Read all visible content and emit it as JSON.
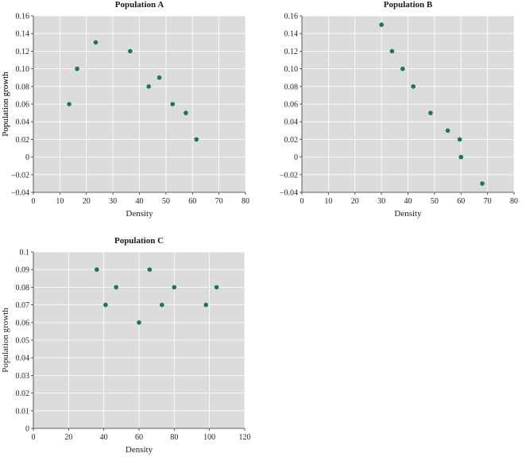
{
  "theme": {
    "plot_background": "#dcdcdc",
    "grid_color": "#ffffff",
    "point_color": "#1a7a4c",
    "axis_color": "#333333"
  },
  "chart_data": [
    {
      "type": "scatter",
      "title": "Population A",
      "xlabel": "Density",
      "ylabel": "Population growth",
      "xlim": [
        0,
        80
      ],
      "ylim": [
        -0.04,
        0.16
      ],
      "grid": true,
      "xticks": [
        0,
        10,
        20,
        30,
        40,
        50,
        60,
        70,
        80
      ],
      "yticks": [
        -0.04,
        -0.02,
        0,
        0.02,
        0.04,
        0.06,
        0.08,
        0.1,
        0.12,
        0.14,
        0.16
      ],
      "xtick_labels": [
        "0",
        "10",
        "20",
        "30",
        "40",
        "50",
        "60",
        "70",
        "80"
      ],
      "ytick_labels": [
        "−0.04",
        "−0.02",
        "0",
        "0.02",
        "0.04",
        "0.06",
        "0.08",
        "0.10",
        "0.12",
        "0.14",
        "0.16"
      ],
      "points": [
        {
          "x": 13.5,
          "y": 0.06
        },
        {
          "x": 16.5,
          "y": 0.1
        },
        {
          "x": 23.5,
          "y": 0.13
        },
        {
          "x": 36.5,
          "y": 0.12
        },
        {
          "x": 43.5,
          "y": 0.08
        },
        {
          "x": 47.5,
          "y": 0.09
        },
        {
          "x": 52.5,
          "y": 0.06
        },
        {
          "x": 57.5,
          "y": 0.05
        },
        {
          "x": 61.5,
          "y": 0.02
        }
      ]
    },
    {
      "type": "scatter",
      "title": "Population B",
      "xlabel": "Density",
      "ylabel": "Population growth",
      "xlim": [
        0,
        80
      ],
      "ylim": [
        -0.04,
        0.16
      ],
      "grid": true,
      "xticks": [
        0,
        10,
        20,
        30,
        40,
        50,
        60,
        70,
        80
      ],
      "yticks": [
        -0.04,
        -0.02,
        0,
        0.02,
        0.04,
        0.06,
        0.08,
        0.1,
        0.12,
        0.14,
        0.16
      ],
      "xtick_labels": [
        "0",
        "10",
        "20",
        "30",
        "40",
        "50",
        "60",
        "70",
        "80"
      ],
      "ytick_labels": [
        "−0.04",
        "−0.02",
        "0",
        "0.02",
        "0.04",
        "0.06",
        "0.08",
        "0.10",
        "0.12",
        "0.14",
        "0.16"
      ],
      "points": [
        {
          "x": 30,
          "y": 0.15
        },
        {
          "x": 34,
          "y": 0.12
        },
        {
          "x": 38,
          "y": 0.1
        },
        {
          "x": 42,
          "y": 0.08
        },
        {
          "x": 48.5,
          "y": 0.05
        },
        {
          "x": 55,
          "y": 0.03
        },
        {
          "x": 59.5,
          "y": 0.02
        },
        {
          "x": 60,
          "y": 0
        },
        {
          "x": 68,
          "y": -0.03
        }
      ]
    },
    {
      "type": "scatter",
      "title": "Population C",
      "xlabel": "Density",
      "ylabel": "Population growth",
      "xlim": [
        0,
        120
      ],
      "ylim": [
        0,
        0.1
      ],
      "grid": true,
      "xticks": [
        0,
        20,
        40,
        60,
        80,
        100,
        120
      ],
      "yticks": [
        0,
        0.01,
        0.02,
        0.03,
        0.04,
        0.05,
        0.06,
        0.07,
        0.08,
        0.09,
        0.1
      ],
      "xtick_labels": [
        "0",
        "20",
        "40",
        "60",
        "80",
        "100",
        "120"
      ],
      "ytick_labels": [
        "0",
        "0.01",
        "0.02",
        "0.03",
        "0.04",
        "0.05",
        "0.06",
        "0.07",
        "0.08",
        "0.09",
        "0.1"
      ],
      "points": [
        {
          "x": 36,
          "y": 0.09
        },
        {
          "x": 41,
          "y": 0.07
        },
        {
          "x": 47,
          "y": 0.08
        },
        {
          "x": 60,
          "y": 0.06
        },
        {
          "x": 66,
          "y": 0.09
        },
        {
          "x": 73,
          "y": 0.07
        },
        {
          "x": 80,
          "y": 0.08
        },
        {
          "x": 98,
          "y": 0.07
        },
        {
          "x": 104,
          "y": 0.08
        }
      ]
    }
  ]
}
